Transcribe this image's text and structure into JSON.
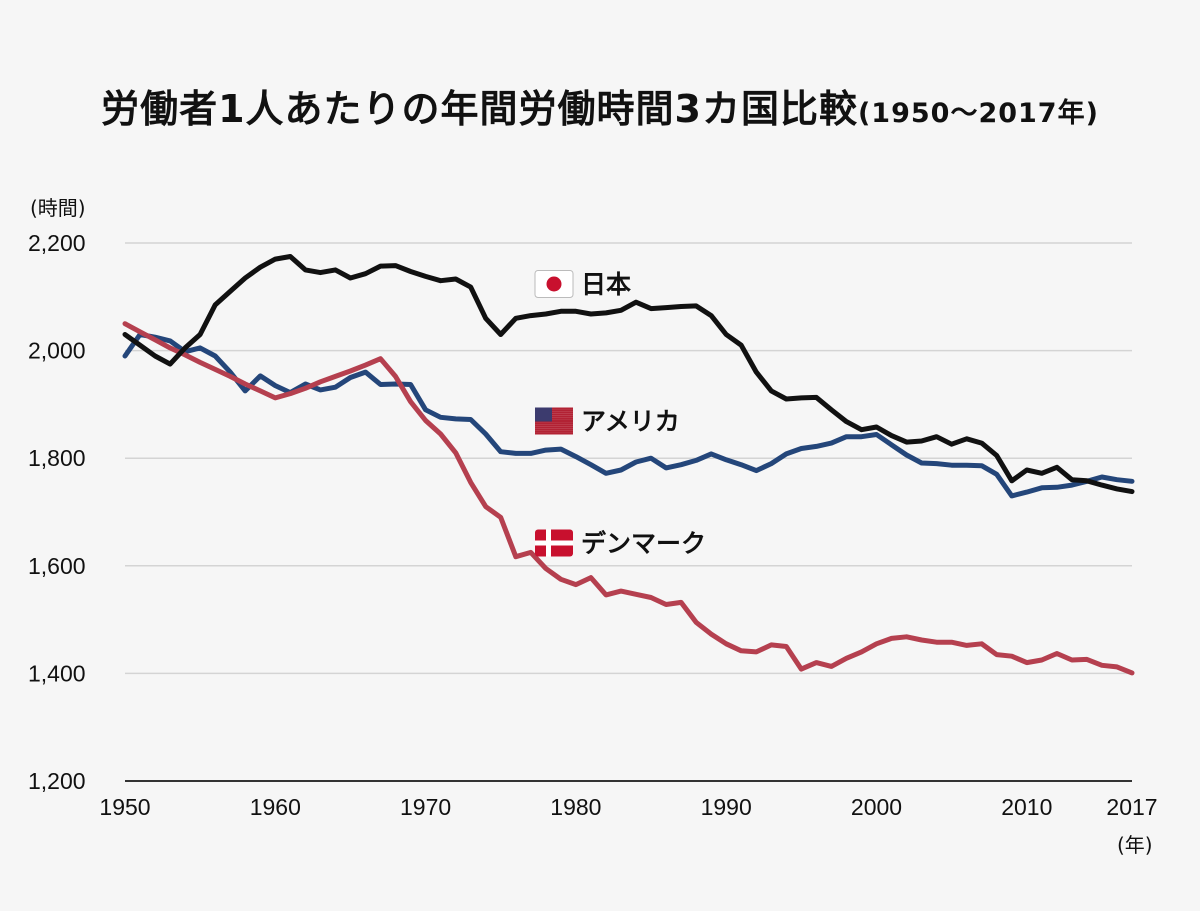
{
  "title": {
    "main": "労働者1人あたりの年間労働時間3カ国比較",
    "sub": "(1950〜2017年)"
  },
  "chart_data": {
    "type": "line",
    "ylabel": "(時間)",
    "xlabel": "(年)",
    "ylim": [
      1200,
      2200
    ],
    "xlim": [
      1950,
      2017
    ],
    "yticks": [
      1200,
      1400,
      1600,
      1800,
      2000,
      2200
    ],
    "ytick_labels": [
      "1,200",
      "1,400",
      "1,600",
      "1,800",
      "2,000",
      "2,200"
    ],
    "xticks": [
      1950,
      1960,
      1970,
      1980,
      1990,
      2000,
      2010,
      2017
    ],
    "xtick_labels": [
      "1950",
      "1960",
      "1970",
      "1980",
      "1990",
      "2000",
      "2010",
      "2017"
    ],
    "grid": true,
    "x": [
      1950,
      1951,
      1952,
      1953,
      1954,
      1955,
      1956,
      1957,
      1958,
      1959,
      1960,
      1961,
      1962,
      1963,
      1964,
      1965,
      1966,
      1967,
      1968,
      1969,
      1970,
      1971,
      1972,
      1973,
      1974,
      1975,
      1976,
      1977,
      1978,
      1979,
      1980,
      1981,
      1982,
      1983,
      1984,
      1985,
      1986,
      1987,
      1988,
      1989,
      1990,
      1991,
      1992,
      1993,
      1994,
      1995,
      1996,
      1997,
      1998,
      1999,
      2000,
      2001,
      2002,
      2003,
      2004,
      2005,
      2006,
      2007,
      2008,
      2009,
      2010,
      2011,
      2012,
      2013,
      2014,
      2015,
      2016,
      2017
    ],
    "series": [
      {
        "name": "日本",
        "flag": "japan-flag",
        "color": "#111111",
        "values": [
          2030,
          2010,
          1990,
          1975,
          2005,
          2030,
          2085,
          2110,
          2135,
          2155,
          2170,
          2175,
          2150,
          2145,
          2150,
          2135,
          2143,
          2157,
          2158,
          2147,
          2138,
          2130,
          2133,
          2118,
          2060,
          2030,
          2060,
          2065,
          2068,
          2073,
          2073,
          2068,
          2070,
          2075,
          2090,
          2078,
          2080,
          2082,
          2083,
          2065,
          2030,
          2010,
          1960,
          1925,
          1910,
          1912,
          1913,
          1890,
          1868,
          1853,
          1858,
          1842,
          1830,
          1832,
          1840,
          1826,
          1836,
          1828,
          1805,
          1758,
          1778,
          1772,
          1783,
          1760,
          1758,
          1750,
          1743,
          1738
        ]
      },
      {
        "name": "アメリカ",
        "flag": "usa-flag",
        "color": "#24467a",
        "values": [
          1990,
          2030,
          2025,
          2018,
          1998,
          2005,
          1990,
          1960,
          1925,
          1953,
          1935,
          1922,
          1938,
          1927,
          1932,
          1950,
          1960,
          1937,
          1938,
          1937,
          1890,
          1876,
          1873,
          1872,
          1845,
          1812,
          1809,
          1809,
          1815,
          1817,
          1803,
          1788,
          1772,
          1778,
          1793,
          1800,
          1782,
          1788,
          1796,
          1808,
          1797,
          1788,
          1777,
          1790,
          1808,
          1818,
          1822,
          1828,
          1840,
          1840,
          1844,
          1825,
          1806,
          1791,
          1790,
          1787,
          1787,
          1786,
          1770,
          1730,
          1737,
          1745,
          1746,
          1750,
          1757,
          1765,
          1760,
          1757
        ]
      },
      {
        "name": "デンマーク",
        "flag": "denmark-flag",
        "color": "#b5404f",
        "values": [
          2050,
          2035,
          2020,
          2005,
          1992,
          1978,
          1965,
          1952,
          1938,
          1925,
          1912,
          1920,
          1930,
          1942,
          1952,
          1962,
          1973,
          1985,
          1952,
          1905,
          1870,
          1845,
          1810,
          1755,
          1710,
          1690,
          1617,
          1625,
          1595,
          1575,
          1565,
          1578,
          1546,
          1553,
          1547,
          1541,
          1528,
          1532,
          1495,
          1473,
          1455,
          1442,
          1440,
          1453,
          1450,
          1408,
          1420,
          1413,
          1428,
          1440,
          1455,
          1465,
          1468,
          1462,
          1458,
          1458,
          1452,
          1455,
          1435,
          1432,
          1420,
          1425,
          1437,
          1425,
          1426,
          1415,
          1412,
          1401
        ]
      }
    ]
  }
}
